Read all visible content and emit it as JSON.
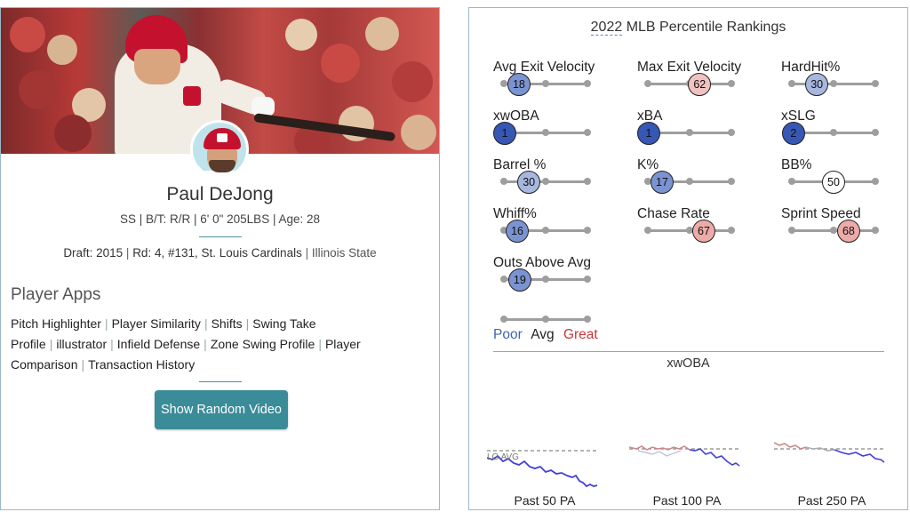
{
  "player": {
    "name": "Paul DeJong",
    "meta": "SS | B/T: R/R | 6' 0\" 205LBS | Age: 28",
    "draft": {
      "label": "Draft:",
      "year": "2015",
      "round": "Rd: 4, #131,",
      "team": "St. Louis Cardinals",
      "college": "Illinois State"
    }
  },
  "apps": {
    "title": "Player Apps",
    "links": [
      "Pitch Highlighter",
      "Player Similarity",
      "Shifts",
      "Swing Take Profile",
      "illustrator",
      "Infield Defense",
      "Zone Swing Profile",
      "Player Comparison",
      "Transaction History"
    ],
    "separator": "|",
    "random_video_label": "Show Random Video"
  },
  "rankings": {
    "title_year": "2022",
    "title_rest": "MLB Percentile Rankings",
    "metrics": [
      {
        "label": "Avg Exit Velocity",
        "value": 18,
        "color": "#7b93d0"
      },
      {
        "label": "Max Exit Velocity",
        "value": 62,
        "color": "#f0c2c0"
      },
      {
        "label": "HardHit%",
        "value": 30,
        "color": "#a7b7dd"
      },
      {
        "label": "xwOBA",
        "value": 1,
        "color": "#3757b5"
      },
      {
        "label": "xBA",
        "value": 1,
        "color": "#3757b5"
      },
      {
        "label": "xSLG",
        "value": 2,
        "color": "#3757b5"
      },
      {
        "label": "Barrel %",
        "value": 30,
        "color": "#a7b7dd"
      },
      {
        "label": "K%",
        "value": 17,
        "color": "#7b93d0"
      },
      {
        "label": "BB%",
        "value": 50,
        "color": "#ffffff"
      },
      {
        "label": "Whiff%",
        "value": 16,
        "color": "#7b93d0"
      },
      {
        "label": "Chase Rate",
        "value": 67,
        "color": "#ecaaa8"
      },
      {
        "label": "Sprint Speed",
        "value": 68,
        "color": "#ecaaa8"
      },
      {
        "label": "Outs Above Avg",
        "value": 19,
        "color": "#7b93d0"
      }
    ],
    "legend": {
      "poor": "Poor",
      "avg": "Avg",
      "great": "Great",
      "poor_color": "#3d66b0",
      "avg_color": "#222222",
      "great_color": "#c8383a"
    }
  },
  "xwoba": {
    "title": "xwOBA",
    "lg_avg_label": "LG AVG",
    "charts": [
      {
        "label": "Past 50 PA"
      },
      {
        "label": "Past 100 PA"
      },
      {
        "label": "Past 250 PA"
      }
    ]
  }
}
